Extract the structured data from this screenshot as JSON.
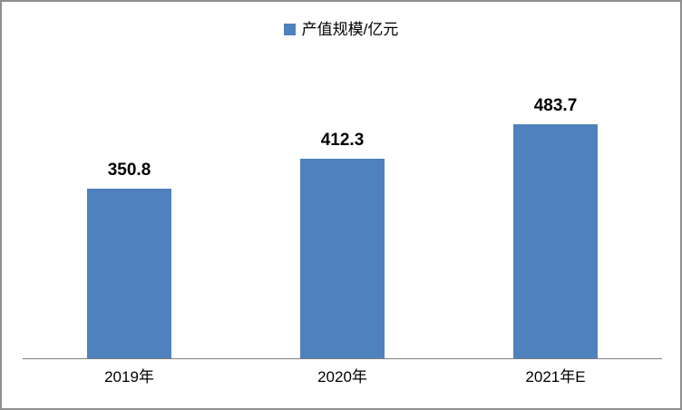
{
  "chart_data": {
    "type": "bar",
    "categories": [
      "2019年",
      "2020年",
      "2021年E"
    ],
    "values": [
      350.8,
      412.3,
      483.7
    ],
    "data_labels": [
      "350.8",
      "412.3",
      "483.7"
    ],
    "series_name": "产值规模/亿元",
    "title": "",
    "xlabel": "",
    "ylabel": "",
    "grid": false,
    "legend_position": "top-center",
    "y_axis_visible": false,
    "bar_color": "#4F81BD",
    "axis_line_color": "#808080",
    "frame_border_color": "#8E8E8E"
  },
  "legend": {
    "label": "产值规模/亿元",
    "swatch_color": "#4F81BD"
  }
}
